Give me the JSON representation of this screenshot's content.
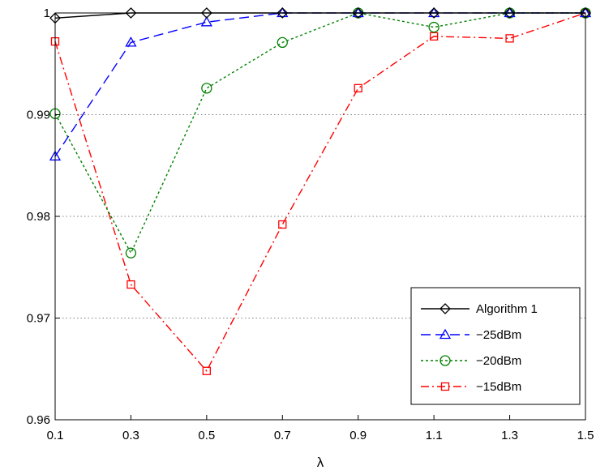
{
  "chart_data": {
    "type": "line",
    "title": "",
    "xlabel": "λ",
    "ylabel": "",
    "x": [
      0.1,
      0.3,
      0.5,
      0.7,
      0.9,
      1.1,
      1.3,
      1.5
    ],
    "x_tick_labels": [
      "0.1",
      "0.3",
      "0.5",
      "0.7",
      "0.9",
      "1.1",
      "1.3",
      "1.5"
    ],
    "xlim": [
      0.1,
      1.5
    ],
    "ylim": [
      0.96,
      1.0
    ],
    "y_ticks": [
      0.96,
      0.97,
      0.98,
      0.99,
      1.0
    ],
    "y_tick_labels": [
      "0.96",
      "0.97",
      "0.98",
      "0.99",
      "1"
    ],
    "grid": "horizontal dotted",
    "legend_position": "bottom-right",
    "series": [
      {
        "name": "Algorithm 1",
        "color": "#000000",
        "dash": "solid",
        "marker": "diamond",
        "values": [
          0.9995,
          1.0,
          1.0,
          1.0,
          1.0,
          1.0,
          1.0,
          1.0
        ]
      },
      {
        "name": "−25dBm",
        "color": "#0000ff",
        "dash": "dashed",
        "marker": "triangle",
        "values": [
          0.9859,
          0.9971,
          0.9991,
          1.0,
          1.0,
          1.0,
          1.0,
          1.0
        ]
      },
      {
        "name": "−20dBm",
        "color": "#008000",
        "dash": "dotted",
        "marker": "circle",
        "values": [
          0.9901,
          0.9764,
          0.9926,
          0.9971,
          1.0,
          0.9986,
          1.0,
          1.0
        ]
      },
      {
        "name": "−15dBm",
        "color": "#ff0000",
        "dash": "dashdot",
        "marker": "square",
        "values": [
          0.9972,
          0.9733,
          0.9648,
          0.9792,
          0.9926,
          0.9977,
          0.9975,
          1.0
        ]
      }
    ]
  }
}
